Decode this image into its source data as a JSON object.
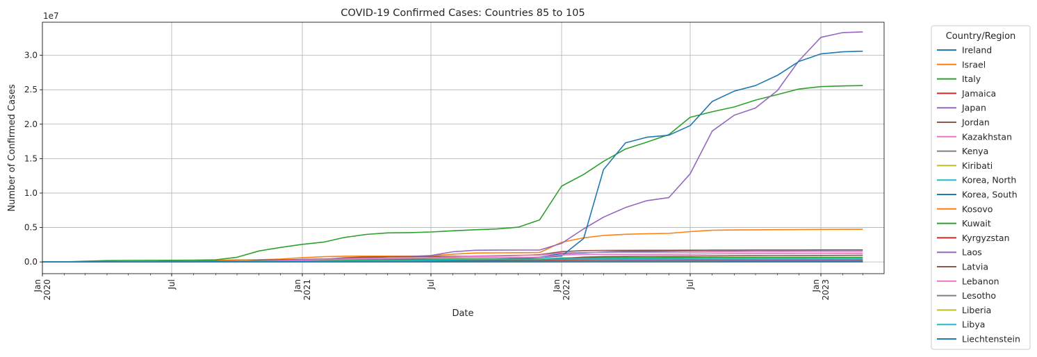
{
  "chart_data": {
    "type": "line",
    "title": "COVID-19 Confirmed Cases: Countries 85 to 105",
    "xlabel": "Date",
    "ylabel": "Number of Confirmed Cases",
    "y_offset_label": "1e7",
    "xlim": [
      "2020-01-01",
      "2023-03-31"
    ],
    "ylim": [
      -1700000,
      34800000
    ],
    "grid": true,
    "legend_title": "Country/Region",
    "legend_position": "outside-right",
    "x": [
      "2020-01",
      "2020-02",
      "2020-03",
      "2020-04",
      "2020-05",
      "2020-06",
      "2020-07",
      "2020-08",
      "2020-09",
      "2020-10",
      "2020-11",
      "2020-12",
      "2021-01",
      "2021-02",
      "2021-03",
      "2021-04",
      "2021-05",
      "2021-06",
      "2021-07",
      "2021-08",
      "2021-09",
      "2021-10",
      "2021-11",
      "2021-12",
      "2022-01",
      "2022-02",
      "2022-03",
      "2022-04",
      "2022-05",
      "2022-06",
      "2022-07",
      "2022-08",
      "2022-09",
      "2022-10",
      "2022-11",
      "2022-12",
      "2023-01",
      "2023-02",
      "2023-03"
    ],
    "x_ticks_major": [
      {
        "month": "2020-01",
        "line1": "Jan",
        "line2": "2020"
      },
      {
        "month": "2020-07",
        "line1": "Jul",
        "line2": ""
      },
      {
        "month": "2021-01",
        "line1": "Jan",
        "line2": "2021"
      },
      {
        "month": "2021-07",
        "line1": "Jul",
        "line2": ""
      },
      {
        "month": "2022-01",
        "line1": "Jan",
        "line2": "2022"
      },
      {
        "month": "2022-07",
        "line1": "Jul",
        "line2": ""
      },
      {
        "month": "2023-01",
        "line1": "Jan",
        "line2": "2023"
      }
    ],
    "y_ticks": [
      {
        "value": 0,
        "label": "0.0"
      },
      {
        "value": 5000000,
        "label": "0.5"
      },
      {
        "value": 10000000,
        "label": "1.0"
      },
      {
        "value": 15000000,
        "label": "1.5"
      },
      {
        "value": 20000000,
        "label": "2.0"
      },
      {
        "value": 25000000,
        "label": "2.5"
      },
      {
        "value": 30000000,
        "label": "3.0"
      }
    ],
    "series": [
      {
        "name": "Ireland",
        "color": "#1f77b4",
        "values": [
          0,
          0,
          3000,
          21000,
          25000,
          25500,
          26000,
          28000,
          34000,
          62000,
          73000,
          92000,
          190000,
          220000,
          235000,
          250000,
          260000,
          270000,
          300000,
          350000,
          390000,
          420000,
          530000,
          700000,
          1200000,
          1300000,
          1450000,
          1540000,
          1560000,
          1580000,
          1620000,
          1650000,
          1660000,
          1680000,
          1690000,
          1700000,
          1710000,
          1715000,
          1720000
        ]
      },
      {
        "name": "Israel",
        "color": "#ff7f0e",
        "values": [
          0,
          0,
          5000,
          16000,
          17000,
          24000,
          70000,
          110000,
          240000,
          310000,
          330000,
          420000,
          620000,
          760000,
          830000,
          838000,
          840000,
          840000,
          870000,
          1130000,
          1290000,
          1320000,
          1340000,
          1370000,
          2850000,
          3500000,
          3850000,
          4020000,
          4100000,
          4150000,
          4400000,
          4600000,
          4640000,
          4660000,
          4680000,
          4700000,
          4720000,
          4730000,
          4740000
        ]
      },
      {
        "name": "Italy",
        "color": "#2ca02c",
        "values": [
          0,
          1000,
          100000,
          200000,
          230000,
          240000,
          247000,
          268000,
          313000,
          680000,
          1600000,
          2100000,
          2550000,
          2900000,
          3550000,
          4000000,
          4220000,
          4260000,
          4350000,
          4520000,
          4670000,
          4780000,
          5050000,
          6100000,
          11000000,
          12700000,
          14600000,
          16400000,
          17400000,
          18500000,
          21000000,
          21800000,
          22500000,
          23500000,
          24300000,
          25100000,
          25450000,
          25550000,
          25600000
        ]
      },
      {
        "name": "Jamaica",
        "color": "#d62728",
        "values": [
          0,
          0,
          30,
          470,
          580,
          700,
          900,
          1400,
          5000,
          8000,
          10000,
          13000,
          15000,
          21000,
          36000,
          45000,
          48000,
          50000,
          51000,
          61000,
          81000,
          89000,
          91000,
          95000,
          130000,
          140000,
          142000,
          144000,
          146000,
          148000,
          150000,
          152000,
          153000,
          154000,
          154500,
          155000,
          155300,
          155600,
          156000
        ]
      },
      {
        "name": "Japan",
        "color": "#9467bd",
        "values": [
          0,
          200,
          2000,
          14000,
          16600,
          18500,
          33000,
          67000,
          82000,
          96000,
          148000,
          236000,
          390000,
          432000,
          476000,
          586000,
          750000,
          795000,
          930000,
          1480000,
          1700000,
          1720000,
          1725000,
          1730000,
          2700000,
          4800000,
          6500000,
          7900000,
          8900000,
          9350000,
          12800000,
          19000000,
          21300000,
          22350000,
          24900000,
          29200000,
          32600000,
          33300000,
          33400000
        ]
      },
      {
        "name": "Jordan",
        "color": "#8c564b",
        "values": [
          0,
          0,
          300,
          450,
          700,
          1100,
          1200,
          1500,
          3000,
          35000,
          260000,
          310000,
          325000,
          390000,
          600000,
          720000,
          740000,
          750000,
          770000,
          810000,
          830000,
          860000,
          930000,
          1050000,
          1500000,
          1650000,
          1680000,
          1690000,
          1695000,
          1700000,
          1710000,
          1720000,
          1730000,
          1735000,
          1740000,
          1742000,
          1744000,
          1745000,
          1746000
        ]
      },
      {
        "name": "Kazakhstan",
        "color": "#e377c2",
        "values": [
          0,
          0,
          400,
          4500,
          12000,
          28000,
          90000,
          110000,
          120000,
          128000,
          140000,
          210000,
          230000,
          260000,
          300000,
          380000,
          430000,
          470000,
          600000,
          740000,
          860000,
          920000,
          960000,
          990000,
          1300000,
          1380000,
          1390000,
          1392000,
          1393000,
          1395000,
          1400000,
          1450000,
          1470000,
          1480000,
          1490000,
          1495000,
          1497000,
          1498000,
          1500000
        ]
      },
      {
        "name": "Kenya",
        "color": "#7f7f7f",
        "values": [
          0,
          0,
          60,
          400,
          1900,
          6300,
          20000,
          35000,
          38000,
          55000,
          84000,
          96000,
          101000,
          107000,
          141000,
          160000,
          172000,
          185000,
          200000,
          230000,
          248000,
          253000,
          255000,
          295000,
          320000,
          323000,
          323500,
          324000,
          325000,
          330000,
          335000,
          337000,
          338000,
          339000,
          340000,
          342000,
          343000,
          343500,
          344000
        ]
      },
      {
        "name": "Kiribati",
        "color": "#bcbd22",
        "values": [
          0,
          0,
          0,
          0,
          0,
          0,
          0,
          0,
          0,
          0,
          0,
          0,
          0,
          0,
          0,
          0,
          0,
          0,
          0,
          0,
          0,
          0,
          0,
          0,
          2000,
          3000,
          3200,
          3300,
          3400,
          3500,
          3600,
          4000,
          4500,
          5000,
          5100,
          5150,
          5200,
          5250,
          5300
        ]
      },
      {
        "name": "Korea, North",
        "color": "#17becf",
        "values": [
          0,
          0,
          0,
          0,
          0,
          0,
          0,
          0,
          0,
          0,
          0,
          0,
          0,
          0,
          0,
          0,
          0,
          0,
          0,
          0,
          0,
          0,
          0,
          0,
          0,
          0,
          0,
          0,
          0,
          0,
          0,
          0,
          0,
          0,
          0,
          0,
          0,
          0,
          0
        ]
      },
      {
        "name": "Korea, South",
        "color": "#1f77b4",
        "values": [
          0,
          3000,
          10000,
          11000,
          11500,
          12800,
          14300,
          20000,
          24000,
          26500,
          35000,
          61000,
          78000,
          90000,
          103000,
          122000,
          141000,
          155000,
          200000,
          253000,
          318000,
          372000,
          458000,
          630000,
          860000,
          3400000,
          13400000,
          17300000,
          18100000,
          18400000,
          19800000,
          23300000,
          24800000,
          25600000,
          27100000,
          29100000,
          30200000,
          30500000,
          30600000
        ]
      },
      {
        "name": "Kosovo",
        "color": "#ff7f0e",
        "values": [
          0,
          0,
          100,
          800,
          1000,
          2000,
          7000,
          12000,
          15000,
          18000,
          34000,
          50000,
          58000,
          68000,
          90000,
          104000,
          107000,
          107500,
          108000,
          145000,
          159000,
          160000,
          161000,
          162000,
          210000,
          226000,
          228000,
          229000,
          229500,
          230000,
          235000,
          270000,
          271000,
          272000,
          272500,
          273000,
          273200,
          273500,
          273700
        ]
      },
      {
        "name": "Kuwait",
        "color": "#2ca02c",
        "values": [
          0,
          0,
          300,
          4000,
          30000,
          45000,
          70000,
          85000,
          104000,
          125000,
          141000,
          150000,
          165000,
          190000,
          230000,
          280000,
          310000,
          360000,
          400000,
          410000,
          412000,
          413000,
          414000,
          420000,
          555000,
          620000,
          625000,
          628000,
          631000,
          640000,
          650000,
          655000,
          657000,
          658000,
          659000,
          660000,
          661000,
          662000,
          663000
        ]
      },
      {
        "name": "Kyrgyzstan",
        "color": "#d62728",
        "values": [
          0,
          0,
          100,
          800,
          1800,
          5000,
          33000,
          43000,
          47000,
          57000,
          72000,
          80000,
          84000,
          86000,
          90000,
          99000,
          106000,
          120000,
          160000,
          175000,
          178000,
          180000,
          182000,
          184000,
          195000,
          199000,
          200000,
          201000,
          201500,
          201800,
          202000,
          203000,
          205000,
          206000,
          206200,
          206400,
          206500,
          206600,
          206700
        ]
      },
      {
        "name": "Laos",
        "color": "#9467bd",
        "values": [
          0,
          0,
          8,
          19,
          19,
          19,
          20,
          22,
          23,
          24,
          39,
          41,
          45,
          47,
          49,
          900,
          1900,
          2100,
          4300,
          12000,
          20000,
          47000,
          82000,
          110000,
          135000,
          164000,
          200000,
          205000,
          209000,
          210000,
          211000,
          213000,
          216000,
          217000,
          218000,
          218500,
          218800,
          219000,
          219100
        ]
      },
      {
        "name": "Latvia",
        "color": "#8c564b",
        "values": [
          0,
          0,
          400,
          900,
          1060,
          1110,
          1220,
          1300,
          1500,
          4000,
          15000,
          40000,
          60000,
          80000,
          100000,
          120000,
          132000,
          137000,
          138000,
          140000,
          150000,
          220000,
          260000,
          280000,
          500000,
          700000,
          780000,
          800000,
          820000,
          835000,
          850000,
          880000,
          900000,
          910000,
          920000,
          930000,
          940000,
          950000,
          960000
        ]
      },
      {
        "name": "Lebanon",
        "color": "#e377c2",
        "values": [
          0,
          0,
          500,
          730,
          1200,
          1800,
          5000,
          15000,
          37000,
          70000,
          140000,
          180000,
          280000,
          360000,
          460000,
          520000,
          540000,
          545000,
          570000,
          600000,
          620000,
          630000,
          650000,
          690000,
          1000000,
          1080000,
          1090000,
          1095000,
          1097000,
          1100000,
          1120000,
          1170000,
          1200000,
          1210000,
          1215000,
          1220000,
          1225000,
          1230000,
          1235000
        ]
      },
      {
        "name": "Lesotho",
        "color": "#7f7f7f",
        "values": [
          0,
          0,
          0,
          0,
          1,
          24,
          600,
          1000,
          1600,
          1900,
          2100,
          3000,
          9000,
          10500,
          10700,
          10800,
          10800,
          11000,
          14000,
          14600,
          14700,
          14900,
          14900,
          16000,
          32000,
          32600,
          32800,
          33000,
          33200,
          33500,
          33800,
          34100,
          34300,
          34400,
          34500,
          34600,
          34600,
          34700,
          34700
        ]
      },
      {
        "name": "Liberia",
        "color": "#bcbd22",
        "values": [
          0,
          0,
          3,
          140,
          300,
          800,
          1200,
          1300,
          1350,
          1400,
          1550,
          1800,
          2000,
          2050,
          2100,
          2150,
          2200,
          4800,
          5400,
          5600,
          5800,
          5800,
          5800,
          6100,
          7300,
          7400,
          7500,
          7500,
          7600,
          7700,
          7800,
          7900,
          7900,
          7950,
          8000,
          8000,
          8050,
          8100,
          8100
        ]
      },
      {
        "name": "Libya",
        "color": "#17becf",
        "values": [
          0,
          0,
          10,
          60,
          120,
          600,
          2800,
          12000,
          35000,
          60000,
          85000,
          100000,
          120000,
          140000,
          160000,
          175000,
          185000,
          190000,
          260000,
          310000,
          340000,
          355000,
          365000,
          380000,
          450000,
          490000,
          498000,
          500000,
          501000,
          502000,
          504000,
          506000,
          507000,
          507200,
          507400,
          507600,
          507700,
          507800,
          507900
        ]
      },
      {
        "name": "Liechtenstein",
        "color": "#1f77b4",
        "values": [
          0,
          0,
          60,
          80,
          83,
          83,
          86,
          100,
          110,
          500,
          1300,
          2100,
          2500,
          2600,
          2800,
          3000,
          3000,
          3050,
          3100,
          3200,
          3300,
          3500,
          4500,
          5000,
          9000,
          11000,
          12000,
          18000,
          18000,
          18100,
          18300,
          19000,
          20000,
          20500,
          20800,
          21000,
          21100,
          21200,
          21300
        ]
      }
    ]
  }
}
